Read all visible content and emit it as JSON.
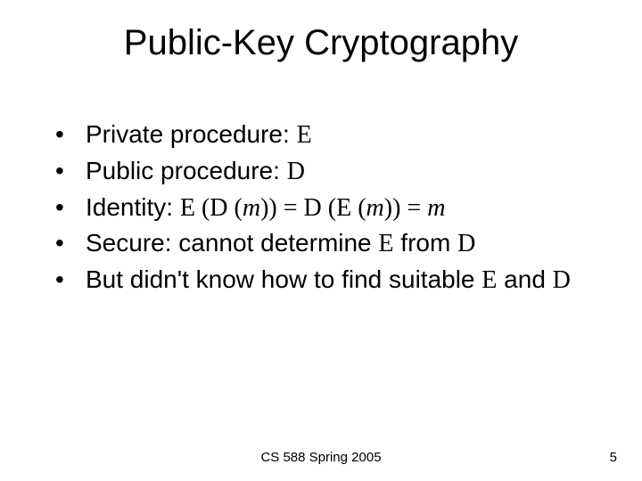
{
  "title": "Public-Key Cryptography",
  "bullets": {
    "b1": {
      "pre": "Private procedure: ",
      "sym": "E"
    },
    "b2": {
      "pre": "Public procedure: ",
      "sym": "D"
    },
    "b3": {
      "pre": "Identity: ",
      "s1": "E ",
      "p1": "(",
      "s2": "D ",
      "p2": "(",
      "m1": "m",
      "p3": ")) = ",
      "s3": "D ",
      "p4": "(",
      "s4": "E ",
      "p5": "(",
      "m2": "m",
      "p6": ")) = ",
      "m3": "m"
    },
    "b4": {
      "pre": "Secure: cannot determine ",
      "sym1": "E",
      "mid": " from ",
      "sym2": "D"
    },
    "b5": {
      "pre": "But didn't know how to find suitable ",
      "sym1": "E",
      "mid": " and ",
      "sym2": "D"
    }
  },
  "footer": {
    "center": "CS 588 Spring 2005",
    "page": "5"
  },
  "colors": {
    "text": "#000000",
    "background": "#ffffff"
  },
  "fonts": {
    "body": "Arial",
    "math": "Times New Roman",
    "title_size": 40,
    "body_size": 28,
    "footer_size": 15
  }
}
